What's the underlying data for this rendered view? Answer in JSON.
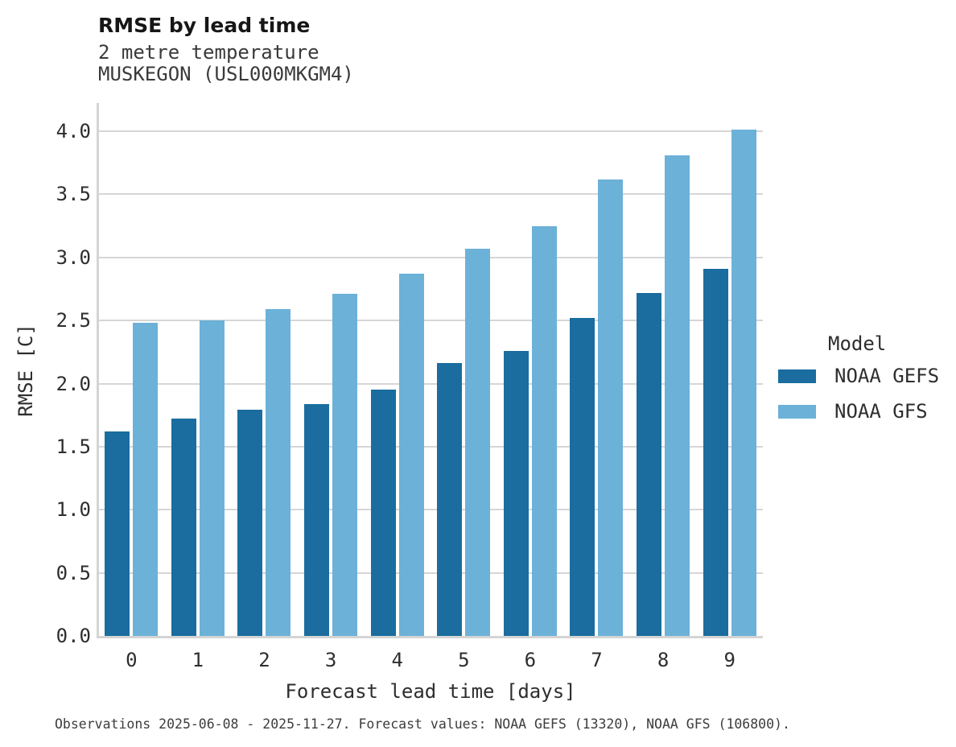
{
  "header": {
    "title": "RMSE by lead time",
    "subtitle_line1": "2 metre temperature",
    "subtitle_line2": "MUSKEGON (USL000MKGM4)"
  },
  "chart_data": {
    "type": "bar",
    "title": "RMSE by lead time",
    "subtitle": [
      "2 metre temperature",
      "MUSKEGON (USL000MKGM4)"
    ],
    "categories": [
      "0",
      "1",
      "2",
      "3",
      "4",
      "5",
      "6",
      "7",
      "8",
      "9"
    ],
    "series": [
      {
        "name": "NOAA GEFS",
        "color": "#1a6d9e",
        "values": [
          1.62,
          1.72,
          1.79,
          1.84,
          1.95,
          2.16,
          2.26,
          2.52,
          2.72,
          2.91
        ]
      },
      {
        "name": "NOAA GFS",
        "color": "#6cb1d8",
        "values": [
          2.48,
          2.5,
          2.59,
          2.71,
          2.87,
          3.07,
          3.25,
          3.62,
          3.81,
          4.01
        ]
      }
    ],
    "xlabel": "Forecast lead time [days]",
    "ylabel": "RMSE [C]",
    "ylim": [
      0.0,
      4.22
    ],
    "yticks": [
      "0.0",
      "0.5",
      "1.0",
      "1.5",
      "2.0",
      "2.5",
      "3.0",
      "3.5",
      "4.0"
    ],
    "grid": true,
    "legend_title": "Model",
    "legend_position": "right"
  },
  "legend": {
    "title": "Model",
    "entries": [
      {
        "label": "NOAA GEFS",
        "color": "#1a6d9e"
      },
      {
        "label": "NOAA GFS",
        "color": "#6cb1d8"
      }
    ]
  },
  "colors": {
    "gefs": "#1a6d9e",
    "gfs": "#6cb1d8",
    "gridline": "#d6d6d6",
    "spine": "#d4d4d4"
  },
  "caption": "Observations 2025-06-08 - 2025-11-27. Forecast values: NOAA GEFS (13320), NOAA GFS (106800)."
}
